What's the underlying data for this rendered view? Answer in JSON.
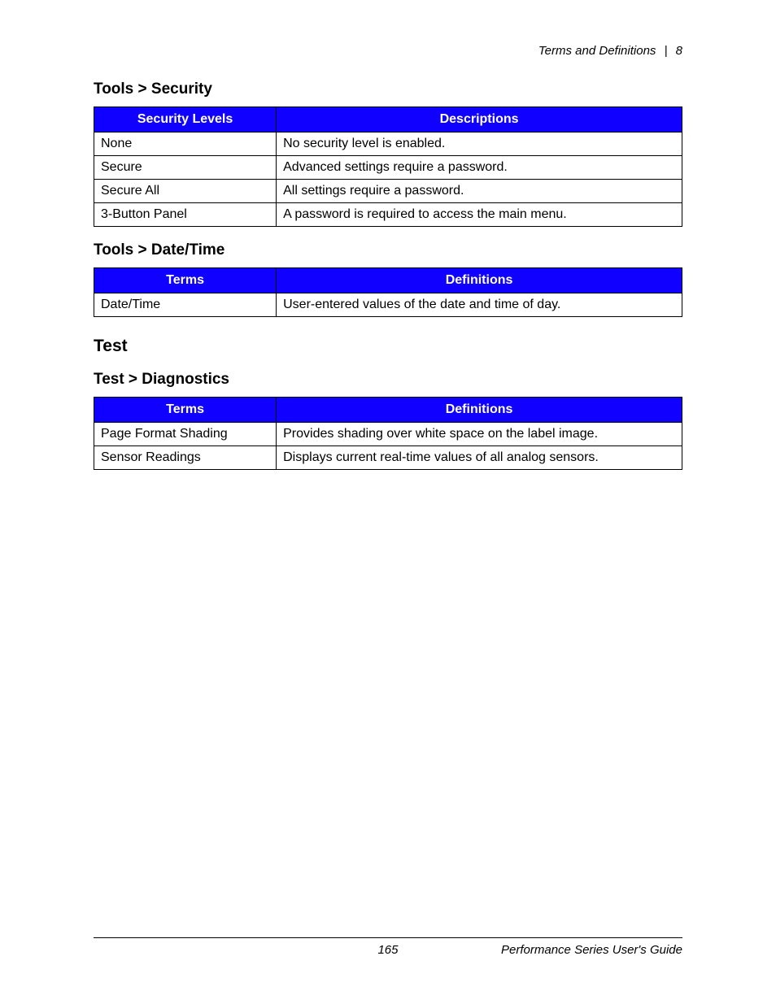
{
  "colors": {
    "header_bg": "#1000ff",
    "header_fg": "#ffffff",
    "border": "#000000",
    "text": "#000000",
    "background": "#ffffff"
  },
  "typography": {
    "body_fontsize_pt": 12,
    "h3_fontsize_pt": 14,
    "h2_fontsize_pt": 16,
    "header_row_fontsize_pt": 12,
    "font_family": "Arial"
  },
  "layout": {
    "col1_width_pct": 31,
    "col2_width_pct": 69
  },
  "running_head": {
    "section": "Terms and Definitions",
    "separator": "|",
    "chapter": "8"
  },
  "sections": [
    {
      "level": "h3",
      "title": "Tools > Security",
      "table": {
        "type": "table",
        "columns": [
          "Security Levels",
          "Descriptions"
        ],
        "rows": [
          [
            "None",
            "No security level is enabled."
          ],
          [
            "Secure",
            "Advanced settings require a password."
          ],
          [
            "Secure All",
            "All settings require a password."
          ],
          [
            "3-Button Panel",
            "A password is required to access the main menu."
          ]
        ]
      }
    },
    {
      "level": "h3",
      "title": "Tools > Date/Time",
      "table": {
        "type": "table",
        "columns": [
          "Terms",
          "Definitions"
        ],
        "rows": [
          [
            "Date/Time",
            "User-entered values of the date and time of day."
          ]
        ]
      }
    },
    {
      "level": "h2",
      "title": "Test",
      "table": null
    },
    {
      "level": "h3",
      "title": "Test > Diagnostics",
      "table": {
        "type": "table",
        "columns": [
          "Terms",
          "Definitions"
        ],
        "rows": [
          [
            "Page Format Shading",
            "Provides shading over white space on the label image."
          ],
          [
            "Sensor Readings",
            "Displays current real-time values of all analog sensors."
          ]
        ]
      }
    }
  ],
  "footer": {
    "page_number": "165",
    "doc_title": "Performance Series User's Guide"
  }
}
